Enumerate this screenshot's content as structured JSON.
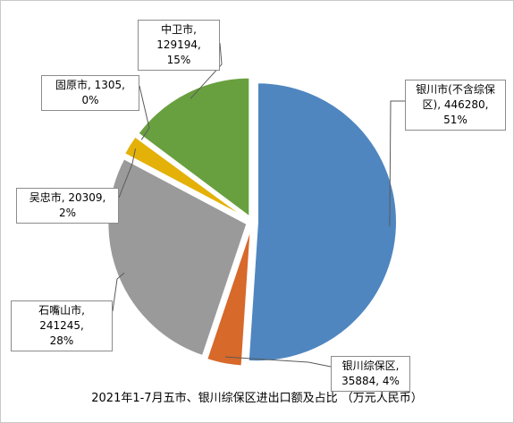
{
  "chart_data": {
    "type": "pie",
    "title": "2021年1-7月五市、银川综保区进出口额及占比 （万元人民币）",
    "slices": [
      {
        "label": "银川市(不含综保区), 446280, 51%",
        "name": "银川市(不含综保区)",
        "value": 446280,
        "percent": 51,
        "color": "#4f86c0"
      },
      {
        "label": "银川综保区, 35884, 4%",
        "name": "银川综保区",
        "value": 35884,
        "percent": 4,
        "color": "#d7692b"
      },
      {
        "label": "石嘴山市, 241245, 28%",
        "name": "石嘴山市",
        "value": 241245,
        "percent": 28,
        "color": "#9a9a9a"
      },
      {
        "label": "吴忠市, 20309, 2%",
        "name": "吴忠市",
        "value": 20309,
        "percent": 2,
        "color": "#e4b109"
      },
      {
        "label": "固原市, 1305, 0%",
        "name": "固原市",
        "value": 1305,
        "percent": 0,
        "color": "#3d6fb0"
      },
      {
        "label": "中卫市, 129194, 15%",
        "name": "中卫市",
        "value": 129194,
        "percent": 15,
        "color": "#69a03f"
      }
    ]
  },
  "labels": {
    "yinchuan": "银川市(不含综保\n区), 446280, 51%",
    "zongbao": "银川综保区,\n35884, 4%",
    "shizuishan": "石嘴山市, 241245,\n28%",
    "wuzhong": "吴忠市, 20309, 2%",
    "guyuan": "固原市, 1305, 0%",
    "zhongwei": "中卫市, 129194,\n15%"
  }
}
